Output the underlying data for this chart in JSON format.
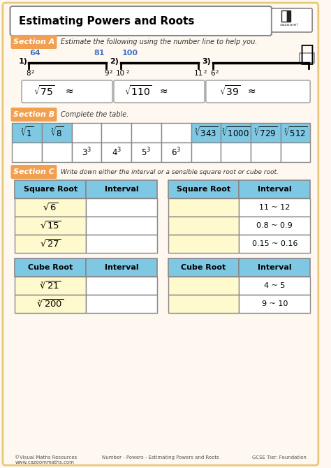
{
  "title": "Estimating Powers and Roots",
  "bg_color": "#FFF8F0",
  "border_color": "#E8C87A",
  "header_bg": "#FFFFFF",
  "section_a_label": "Section A",
  "section_a_text": "Estimate the following using the number line to help you.",
  "section_b_label": "Section B",
  "section_b_text": "Complete the table.",
  "section_c_label": "Section C",
  "section_c_text": "Write down either the interval or a sensible square root or cube root.",
  "footer_left": "©Visual Maths Resources\nwww.cazoommaths.com",
  "footer_center": "Number - Powers - Estimating Powers and Roots",
  "footer_right": "GCSE Tier: Foundation",
  "section_label_bg": "#F0A050",
  "number_line_color": "#4472C4",
  "table_header_bg": "#7EC8E3",
  "table_border": "#888888",
  "yellow_cell": "#FFFACD"
}
